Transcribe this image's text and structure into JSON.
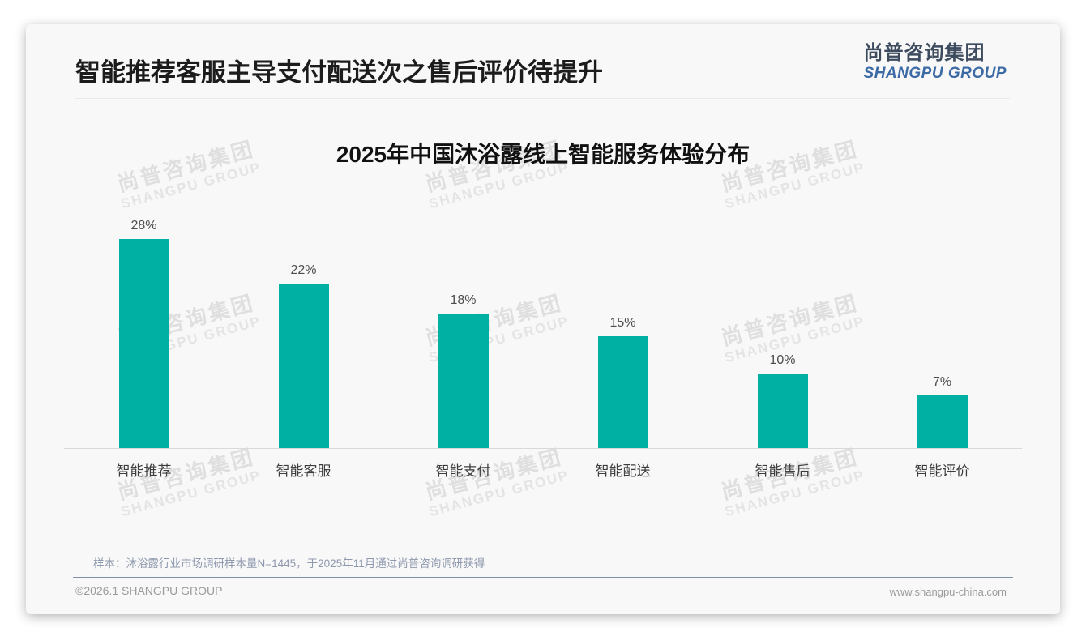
{
  "header": {
    "title": "智能推荐客服主导支付配送次之售后评价待提升",
    "logo_cn": "尚普咨询集团",
    "logo_en": "SHANGPU GROUP"
  },
  "watermark": {
    "cn": "尚普咨询集团",
    "en": "SHANGPU GROUP"
  },
  "chart_data": {
    "type": "bar",
    "title": "2025年中国沐浴露线上智能服务体验分布",
    "categories": [
      "智能推荐",
      "智能客服",
      "智能支付",
      "智能配送",
      "智能售后",
      "智能评价"
    ],
    "values": [
      28,
      22,
      18,
      15,
      10,
      7
    ],
    "labels": [
      "28%",
      "22%",
      "18%",
      "15%",
      "10%",
      "7%"
    ],
    "unit": "%",
    "bar_color": "#00b0a3",
    "ylim": [
      0,
      30
    ],
    "grid": false,
    "legend": false,
    "xlabel": "",
    "ylabel": ""
  },
  "footnote": "样本：沐浴露行业市场调研样本量N=1445，于2025年11月通过尚普咨询调研获得",
  "footer": {
    "left": "©2026.1 SHANGPU GROUP",
    "right": "www.shangpu-china.com"
  },
  "colors": {
    "bar": "#00b0a3",
    "logo_cn": "#3d4b5f",
    "logo_en": "#3b6aa5",
    "card_background": "#f8f8f8"
  }
}
